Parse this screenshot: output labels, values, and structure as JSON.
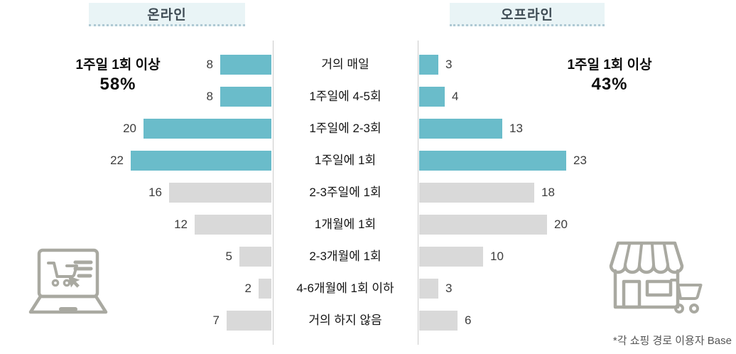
{
  "header": {
    "online_label": "온라인",
    "offline_label": "오프라인"
  },
  "annotations": {
    "online": {
      "line1": "1주일 1회 이상",
      "value": "58%"
    },
    "offline": {
      "line1": "1주일 1회 이상",
      "value": "43%"
    }
  },
  "footnote": "*각 쇼핑 경로 이용자 Base",
  "icons": {
    "online": "laptop-shopping-cart-icon",
    "offline": "storefront-cart-icon"
  },
  "colors": {
    "highlight": "#6abcca",
    "muted": "#d9d9d9",
    "header_bg": "#e9f4f6",
    "header_dotted_border": "#afc9d4",
    "axis_line": "#cbcbcb",
    "icon_stroke": "#a9a9a1"
  },
  "chart_data": {
    "type": "bar",
    "orientation": "horizontal-butterfly",
    "title": "",
    "categories": [
      "거의 매일",
      "1주일에 4-5회",
      "1주일에 2-3회",
      "1주일에 1회",
      "2-3주일에 1회",
      "1개월에 1회",
      "2-3개월에 1회",
      "4-6개월에 1회 이하",
      "거의 하지 않음"
    ],
    "series": [
      {
        "name": "온라인",
        "side": "left",
        "values": [
          8,
          8,
          20,
          22,
          16,
          12,
          5,
          2,
          7
        ]
      },
      {
        "name": "오프라인",
        "side": "right",
        "values": [
          3,
          4,
          13,
          23,
          18,
          20,
          10,
          3,
          6
        ]
      }
    ],
    "highlighted_rows": 4,
    "unit": "%",
    "xlim": [
      0,
      23
    ],
    "grid": false,
    "legend_position": "none"
  }
}
